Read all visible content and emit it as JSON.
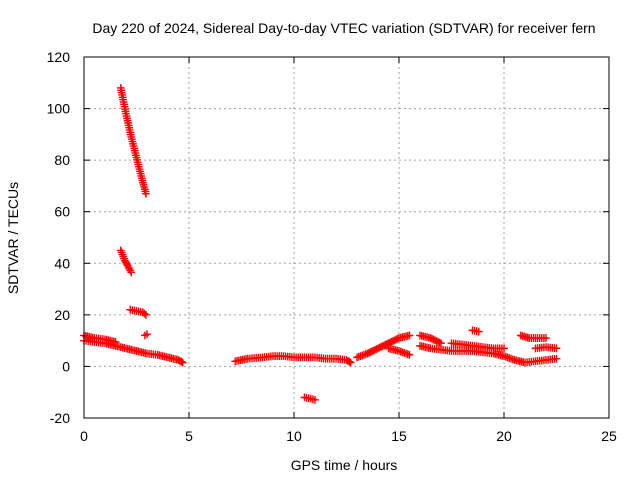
{
  "chart_data": {
    "type": "scatter",
    "title": "Day 220 of 2024, Sidereal Day-to-day VTEC variation (SDTVAR) for receiver fern",
    "xlabel": "GPS time / hours",
    "ylabel": "SDTVAR / TECUs",
    "xlim": [
      0,
      25
    ],
    "ylim": [
      -20,
      120
    ],
    "xticks": [
      "0",
      "5",
      "10",
      "15",
      "20",
      "25"
    ],
    "yticks": [
      "-20",
      "0",
      "20",
      "40",
      "60",
      "80",
      "100",
      "120"
    ],
    "grid": true,
    "marker": "+",
    "color": "#ff0000",
    "segments": [
      {
        "x": [
          0.0,
          0.5,
          1.0,
          1.5
        ],
        "y": [
          12,
          11,
          10.5,
          9.5
        ]
      },
      {
        "x": [
          0.0,
          0.5,
          1.0,
          1.5,
          2.0,
          2.5,
          3.0,
          3.5,
          4.0,
          4.5,
          4.7
        ],
        "y": [
          10,
          9.5,
          9,
          8,
          7,
          6,
          5,
          4.5,
          3.5,
          2.5,
          1.5
        ]
      },
      {
        "x": [
          1.75,
          2.0,
          2.25,
          2.5,
          2.75,
          2.95
        ],
        "y": [
          108,
          98,
          89,
          81,
          73,
          67
        ]
      },
      {
        "x": [
          1.75,
          1.95,
          2.15,
          2.25
        ],
        "y": [
          45,
          41,
          38,
          36.5
        ]
      },
      {
        "x": [
          2.2,
          2.5,
          2.8,
          2.95
        ],
        "y": [
          22,
          21.5,
          21,
          20
        ]
      },
      {
        "x": [
          2.9,
          3.0
        ],
        "y": [
          12,
          12.5
        ]
      },
      {
        "x": [
          7.2,
          7.8,
          8.5,
          9.0,
          9.5,
          10.0,
          10.5,
          11.0,
          11.5,
          12.0,
          12.5,
          12.7
        ],
        "y": [
          2,
          3,
          3.5,
          4,
          4,
          3.5,
          3.5,
          3.5,
          3,
          3,
          2.5,
          1.5
        ]
      },
      {
        "x": [
          10.5,
          10.8,
          11.0
        ],
        "y": [
          -12,
          -12.5,
          -13
        ]
      },
      {
        "x": [
          13.0,
          13.5,
          14.0,
          14.5,
          15.0,
          15.5
        ],
        "y": [
          3.5,
          5,
          7,
          9,
          11,
          12
        ]
      },
      {
        "x": [
          14.5,
          15.0,
          15.5
        ],
        "y": [
          7,
          6,
          4.5
        ]
      },
      {
        "x": [
          16.0,
          16.5,
          17.0,
          17.5,
          18.0,
          18.5,
          19.0,
          19.5,
          20.0,
          20.5,
          21.0,
          21.5,
          22.0,
          22.5
        ],
        "y": [
          8,
          7,
          6.5,
          6,
          6,
          6,
          5.5,
          5,
          4,
          2.5,
          1.5,
          2,
          2.5,
          3
        ]
      },
      {
        "x": [
          16.0,
          16.5,
          17.0
        ],
        "y": [
          12,
          11,
          9
        ]
      },
      {
        "x": [
          17.5,
          18.0,
          18.5,
          19.0,
          19.5,
          20.0
        ],
        "y": [
          9,
          8.5,
          8,
          7.5,
          7,
          7
        ]
      },
      {
        "x": [
          18.5,
          18.8
        ],
        "y": [
          14,
          13.5
        ]
      },
      {
        "x": [
          20.8,
          21.2,
          21.6,
          22.0
        ],
        "y": [
          12,
          11,
          11,
          11
        ]
      },
      {
        "x": [
          21.5,
          22.0,
          22.5
        ],
        "y": [
          7,
          7.5,
          7
        ]
      }
    ]
  }
}
